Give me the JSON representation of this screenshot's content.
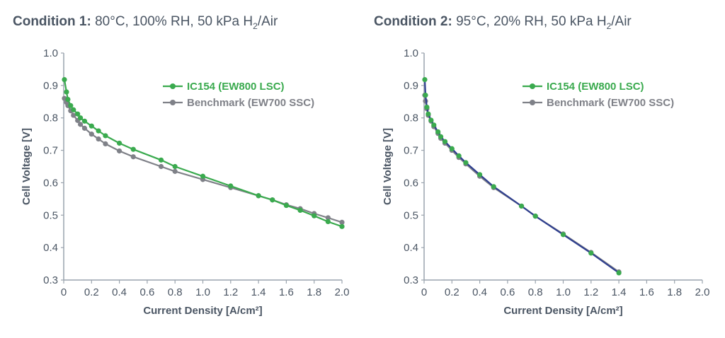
{
  "colors": {
    "ic154": "#3aaa4e",
    "benchmark": "#7f8188",
    "ic154_c2_line": "#2f3f8f",
    "text": "#4a5563",
    "axis": "#9aa3ad"
  },
  "chart_data": [
    {
      "type": "line",
      "title_bold": "Condition 1:",
      "title_rest_a": " 80°C, 100% RH, 50 kPa H",
      "title_sub": "2",
      "title_rest_b": "/Air",
      "xlabel": "Current Density [A/cm²]",
      "ylabel": "Cell Voltage [V]",
      "xlim": [
        0,
        2.0
      ],
      "ylim": [
        0.3,
        1.0
      ],
      "x_ticks": [
        "0",
        "0.2",
        "0.4",
        "0.6",
        "0.8",
        "1.0",
        "1.2",
        "1.4",
        "1.6",
        "1.8",
        "2.0"
      ],
      "y_ticks": [
        "0.3",
        "0.4",
        "0.5",
        "0.6",
        "0.7",
        "0.8",
        "0.9",
        "1.0"
      ],
      "legend": "top-right",
      "series": [
        {
          "name": "IC154 (EW800 LSC)",
          "color": "#3aaa4e",
          "points": [
            [
              0.005,
              0.918
            ],
            [
              0.02,
              0.88
            ],
            [
              0.03,
              0.857
            ],
            [
              0.05,
              0.838
            ],
            [
              0.07,
              0.825
            ],
            [
              0.1,
              0.812
            ],
            [
              0.12,
              0.8
            ],
            [
              0.15,
              0.79
            ],
            [
              0.2,
              0.775
            ],
            [
              0.25,
              0.76
            ],
            [
              0.3,
              0.745
            ],
            [
              0.4,
              0.722
            ],
            [
              0.5,
              0.703
            ],
            [
              0.7,
              0.67
            ],
            [
              0.8,
              0.65
            ],
            [
              1.0,
              0.62
            ],
            [
              1.2,
              0.59
            ],
            [
              1.4,
              0.56
            ],
            [
              1.5,
              0.547
            ],
            [
              1.6,
              0.53
            ],
            [
              1.7,
              0.515
            ],
            [
              1.8,
              0.498
            ],
            [
              1.9,
              0.48
            ],
            [
              2.0,
              0.465
            ]
          ]
        },
        {
          "name": "Benchmark (EW700 SSC)",
          "color": "#7f8188",
          "points": [
            [
              0.005,
              0.86
            ],
            [
              0.02,
              0.848
            ],
            [
              0.03,
              0.838
            ],
            [
              0.05,
              0.822
            ],
            [
              0.07,
              0.808
            ],
            [
              0.1,
              0.792
            ],
            [
              0.12,
              0.78
            ],
            [
              0.15,
              0.768
            ],
            [
              0.2,
              0.75
            ],
            [
              0.25,
              0.735
            ],
            [
              0.3,
              0.72
            ],
            [
              0.4,
              0.698
            ],
            [
              0.5,
              0.68
            ],
            [
              0.7,
              0.65
            ],
            [
              0.8,
              0.635
            ],
            [
              1.0,
              0.61
            ],
            [
              1.2,
              0.585
            ],
            [
              1.4,
              0.56
            ],
            [
              1.5,
              0.547
            ],
            [
              1.6,
              0.532
            ],
            [
              1.7,
              0.52
            ],
            [
              1.8,
              0.505
            ],
            [
              1.9,
              0.492
            ],
            [
              2.0,
              0.478
            ]
          ]
        }
      ]
    },
    {
      "type": "line",
      "title_bold": "Condition 2:",
      "title_rest_a": " 95°C, 20% RH, 50 kPa H",
      "title_sub": "2",
      "title_rest_b": "/Air",
      "xlabel": "Current Density [A/cm²]",
      "ylabel": "Cell Voltage [V]",
      "xlim": [
        0,
        2.0
      ],
      "ylim": [
        0.3,
        1.0
      ],
      "x_ticks": [
        "0",
        "0.2",
        "0.4",
        "0.6",
        "0.8",
        "1.0",
        "1.2",
        "1.4",
        "1.6",
        "1.8",
        "2.0"
      ],
      "y_ticks": [
        "0.3",
        "0.4",
        "0.5",
        "0.6",
        "0.7",
        "0.8",
        "0.9",
        "1.0"
      ],
      "legend": "top-right",
      "series": [
        {
          "name": "IC154 (EW800 LSC)",
          "color": "#3aaa4e",
          "line_color": "#2f3f8f",
          "points": [
            [
              0.005,
              0.918
            ],
            [
              0.01,
              0.87
            ],
            [
              0.02,
              0.833
            ],
            [
              0.03,
              0.812
            ],
            [
              0.05,
              0.793
            ],
            [
              0.07,
              0.778
            ],
            [
              0.1,
              0.757
            ],
            [
              0.12,
              0.742
            ],
            [
              0.15,
              0.727
            ],
            [
              0.2,
              0.705
            ],
            [
              0.25,
              0.683
            ],
            [
              0.3,
              0.662
            ],
            [
              0.4,
              0.625
            ],
            [
              0.5,
              0.588
            ],
            [
              0.7,
              0.528
            ],
            [
              0.8,
              0.497
            ],
            [
              1.0,
              0.44
            ],
            [
              1.2,
              0.383
            ],
            [
              1.4,
              0.322
            ]
          ]
        },
        {
          "name": "Benchmark (EW700 SSC)",
          "color": "#7f8188",
          "points": [
            [
              0.005,
              0.87
            ],
            [
              0.01,
              0.852
            ],
            [
              0.02,
              0.828
            ],
            [
              0.03,
              0.808
            ],
            [
              0.05,
              0.79
            ],
            [
              0.07,
              0.773
            ],
            [
              0.1,
              0.752
            ],
            [
              0.12,
              0.737
            ],
            [
              0.15,
              0.722
            ],
            [
              0.2,
              0.7
            ],
            [
              0.25,
              0.678
            ],
            [
              0.3,
              0.658
            ],
            [
              0.4,
              0.62
            ],
            [
              0.5,
              0.585
            ],
            [
              0.7,
              0.528
            ],
            [
              0.8,
              0.497
            ],
            [
              1.0,
              0.442
            ],
            [
              1.2,
              0.385
            ],
            [
              1.4,
              0.325
            ]
          ]
        }
      ]
    }
  ]
}
